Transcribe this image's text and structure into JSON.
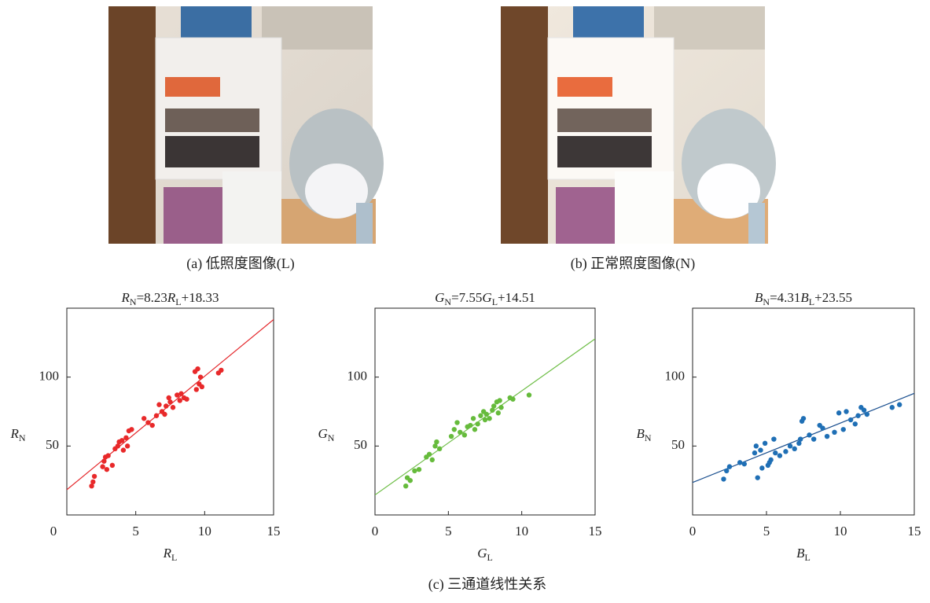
{
  "captions": {
    "a": "(a) 低照度图像(L)",
    "b": "(b) 正常照度图像(N)",
    "c": "(c) 三通道线性关系"
  },
  "chart_data": [
    {
      "type": "scatter",
      "title": "RN=8.23RL+18.33",
      "x_label": "RL",
      "y_label": "RN",
      "color": "#e8292a",
      "line_color": "#e4262a",
      "fit": {
        "slope": 8.23,
        "intercept": 18.33
      },
      "xlim": [
        0,
        15
      ],
      "ylim": [
        0,
        150
      ],
      "xticks": [
        0,
        5,
        10,
        15
      ],
      "yticks": [
        50,
        100
      ],
      "x": [
        1.8,
        1.9,
        2,
        2.6,
        2.7,
        2.8,
        2.9,
        3,
        3.3,
        3.5,
        3.7,
        3.8,
        4,
        4.1,
        4.3,
        4.4,
        4.5,
        4.7,
        5.6,
        5.9,
        6.2,
        6.5,
        6.7,
        6.9,
        7.1,
        7.2,
        7.4,
        7.5,
        7.7,
        8,
        8.2,
        8.3,
        8.5,
        8.7,
        9.3,
        9.5,
        9.4,
        9.6,
        9.8,
        9.7,
        11.2,
        11
      ],
      "values": [
        21,
        24,
        28,
        35,
        39,
        42,
        33,
        43,
        36,
        48,
        50,
        53,
        54,
        47,
        56,
        50,
        61,
        62,
        70,
        67,
        65,
        72,
        80,
        75,
        73,
        79,
        85,
        82,
        78,
        87,
        83,
        88,
        85,
        84,
        104,
        106,
        91,
        95,
        93,
        100,
        105,
        103
      ]
    },
    {
      "type": "scatter",
      "title": "GN=7.55GL+14.51",
      "x_label": "GL",
      "y_label": "GN",
      "color": "#66bb3c",
      "line_color": "#6dbd45",
      "fit": {
        "slope": 7.55,
        "intercept": 14.51
      },
      "xlim": [
        0,
        15
      ],
      "ylim": [
        0,
        150
      ],
      "xticks": [
        0,
        5,
        10,
        15
      ],
      "yticks": [
        50,
        100
      ],
      "x": [
        2.1,
        2.2,
        2.4,
        2.7,
        3,
        3.5,
        3.7,
        3.9,
        4.1,
        4.2,
        4.4,
        5.2,
        5.4,
        5.6,
        5.8,
        6.1,
        6.3,
        6.5,
        6.7,
        6.8,
        7,
        7.2,
        7.4,
        7.5,
        7.6,
        7.8,
        8,
        8.1,
        8.3,
        8.4,
        8.5,
        8.6,
        9.2,
        9.4,
        10.5
      ],
      "values": [
        21,
        27,
        25,
        32,
        33,
        42,
        44,
        40,
        50,
        53,
        48,
        57,
        62,
        67,
        60,
        58,
        64,
        65,
        70,
        62,
        66,
        72,
        75,
        69,
        73,
        70,
        76,
        79,
        82,
        74,
        83,
        78,
        85,
        84,
        87
      ]
    },
    {
      "type": "scatter",
      "title": "BN=4.31BL+23.55",
      "x_label": "BL",
      "y_label": "BN",
      "color": "#1f6fb5",
      "line_color": "#1a4f8f",
      "fit": {
        "slope": 4.31,
        "intercept": 23.55
      },
      "xlim": [
        0,
        15
      ],
      "ylim": [
        0,
        150
      ],
      "xticks": [
        0,
        5,
        10,
        15
      ],
      "yticks": [
        50,
        100
      ],
      "x": [
        2.1,
        2.3,
        2.5,
        3.2,
        3.5,
        4.2,
        4.3,
        4.4,
        4.6,
        4.7,
        4.9,
        5.1,
        5.2,
        5.3,
        5.5,
        5.6,
        5.9,
        6.3,
        6.6,
        6.9,
        7.2,
        7.3,
        7.4,
        7.5,
        7.9,
        8.2,
        8.6,
        8.8,
        9.1,
        9.6,
        9.9,
        10.2,
        10.4,
        10.7,
        11,
        11.2,
        11.4,
        11.6,
        11.8,
        13.5,
        14
      ],
      "values": [
        26,
        32,
        35,
        38,
        37,
        45,
        50,
        27,
        47,
        34,
        52,
        36,
        38,
        40,
        55,
        45,
        43,
        46,
        50,
        48,
        52,
        55,
        68,
        70,
        58,
        55,
        65,
        63,
        57,
        60,
        74,
        62,
        75,
        69,
        66,
        72,
        78,
        76,
        73,
        78,
        80
      ]
    }
  ]
}
